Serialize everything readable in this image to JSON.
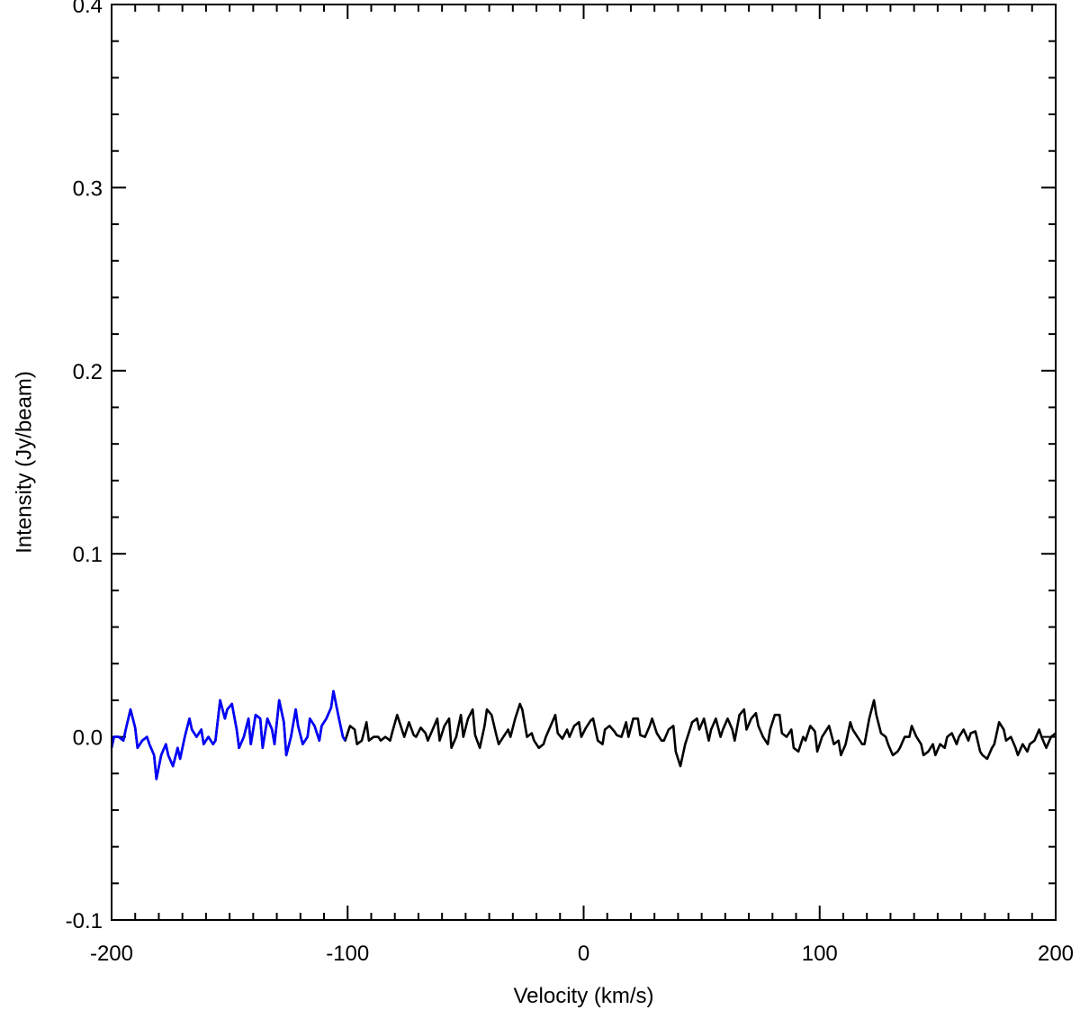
{
  "chart_data": {
    "type": "line",
    "title": "",
    "xlabel": "Velocity (km/s)",
    "ylabel": "Intensity (Jy/beam)",
    "xlim": [
      -200,
      200
    ],
    "ylim": [
      -0.1,
      0.4
    ],
    "x_ticks": [
      -200,
      -100,
      0,
      100,
      200
    ],
    "x_tick_labels": [
      "-200",
      "-100",
      "0",
      "100",
      "200"
    ],
    "y_ticks": [
      -0.1,
      0.0,
      0.1,
      0.2,
      0.3,
      0.4
    ],
    "y_tick_labels": [
      "-0.1",
      "0.0",
      "0.1",
      "0.2",
      "0.3",
      "0.4"
    ],
    "x_minor_step": 10,
    "y_minor_step": 0.02,
    "grid": false,
    "series": [
      {
        "color": "#000000",
        "style": "solid",
        "points": [
          [
            -200,
            -0.006
          ],
          [
            -199,
            0.0
          ],
          [
            -197,
            0.0
          ],
          [
            -195,
            -0.002
          ],
          [
            -194,
            0.004
          ],
          [
            -192,
            0.015
          ],
          [
            -190,
            0.005
          ],
          [
            -189,
            -0.006
          ],
          [
            -187,
            -0.002
          ],
          [
            -185,
            0.0
          ],
          [
            -184,
            -0.004
          ],
          [
            -182,
            -0.01
          ],
          [
            -181,
            -0.023
          ],
          [
            -179,
            -0.01
          ],
          [
            -177,
            -0.004
          ],
          [
            -176,
            -0.01
          ],
          [
            -174,
            -0.016
          ],
          [
            -172,
            -0.006
          ],
          [
            -171,
            -0.012
          ],
          [
            -169,
            0.0
          ],
          [
            -167,
            0.01
          ],
          [
            -166,
            0.004
          ],
          [
            -164,
            0.0
          ],
          [
            -162,
            0.004
          ],
          [
            -161,
            -0.004
          ],
          [
            -159,
            0.0
          ],
          [
            -157,
            -0.004
          ],
          [
            -156,
            -0.002
          ],
          [
            -154,
            0.02
          ],
          [
            -152,
            0.01
          ],
          [
            -151,
            0.015
          ],
          [
            -149,
            0.018
          ],
          [
            -147,
            0.004
          ],
          [
            -146,
            -0.006
          ],
          [
            -144,
            0.0
          ],
          [
            -142,
            0.01
          ],
          [
            -141,
            -0.004
          ],
          [
            -139,
            0.012
          ],
          [
            -137,
            0.01
          ],
          [
            -136,
            -0.006
          ],
          [
            -134,
            0.01
          ],
          [
            -132,
            0.004
          ],
          [
            -131,
            -0.004
          ],
          [
            -129,
            0.02
          ],
          [
            -127,
            0.008
          ],
          [
            -126,
            -0.01
          ],
          [
            -124,
            0.0
          ],
          [
            -122,
            0.015
          ],
          [
            -121,
            0.006
          ],
          [
            -119,
            -0.004
          ],
          [
            -117,
            0.0
          ],
          [
            -116,
            0.01
          ],
          [
            -114,
            0.006
          ],
          [
            -112,
            -0.002
          ],
          [
            -111,
            0.006
          ],
          [
            -109,
            0.01
          ],
          [
            -107,
            0.016
          ],
          [
            -106,
            0.025
          ],
          [
            -104,
            0.012
          ],
          [
            -102,
            0.0
          ],
          [
            -101,
            -0.002
          ],
          [
            -99,
            0.006
          ],
          [
            -97,
            0.004
          ],
          [
            -96,
            -0.004
          ],
          [
            -94,
            -0.002
          ],
          [
            -92,
            0.008
          ],
          [
            -91,
            -0.002
          ],
          [
            -89,
            0.0
          ],
          [
            -87,
            0.0
          ],
          [
            -86,
            -0.002
          ],
          [
            -84,
            0.0
          ],
          [
            -82,
            -0.002
          ],
          [
            -81,
            0.003
          ],
          [
            -79,
            0.012
          ],
          [
            -77,
            0.004
          ],
          [
            -76,
            0.0
          ],
          [
            -74,
            0.008
          ],
          [
            -72,
            0.001
          ],
          [
            -71,
            0.0
          ],
          [
            -69,
            0.005
          ],
          [
            -67,
            0.002
          ],
          [
            -66,
            -0.002
          ],
          [
            -64,
            0.004
          ],
          [
            -62,
            0.01
          ],
          [
            -61,
            -0.002
          ],
          [
            -59,
            0.006
          ],
          [
            -57,
            0.01
          ],
          [
            -56,
            -0.006
          ],
          [
            -54,
            0.0
          ],
          [
            -52,
            0.012
          ],
          [
            -51,
            0.0
          ],
          [
            -49,
            0.01
          ],
          [
            -47,
            0.015
          ],
          [
            -46,
            0.001
          ],
          [
            -44,
            -0.006
          ],
          [
            -42,
            0.006
          ],
          [
            -41,
            0.015
          ],
          [
            -39,
            0.012
          ],
          [
            -37,
            0.001
          ],
          [
            -36,
            -0.004
          ],
          [
            -34,
            0.0
          ],
          [
            -32,
            0.004
          ],
          [
            -31,
            0.0
          ],
          [
            -29,
            0.01
          ],
          [
            -27,
            0.018
          ],
          [
            -26,
            0.015
          ],
          [
            -24,
            0.0
          ],
          [
            -22,
            0.002
          ],
          [
            -21,
            -0.002
          ],
          [
            -19,
            -0.006
          ],
          [
            -17,
            -0.004
          ],
          [
            -16,
            0.0
          ],
          [
            -14,
            0.006
          ],
          [
            -12,
            0.012
          ],
          [
            -11,
            0.002
          ],
          [
            -9,
            -0.001
          ],
          [
            -7,
            0.004
          ],
          [
            -6,
            0.0
          ],
          [
            -4,
            0.006
          ],
          [
            -2,
            0.008
          ],
          [
            -1,
            0.0
          ],
          [
            1,
            0.005
          ],
          [
            3,
            0.009
          ],
          [
            4,
            0.01
          ],
          [
            6,
            -0.002
          ],
          [
            8,
            -0.004
          ],
          [
            9,
            0.004
          ],
          [
            11,
            0.006
          ],
          [
            13,
            0.003
          ],
          [
            14,
            0.001
          ],
          [
            16,
            0.0
          ],
          [
            18,
            0.008
          ],
          [
            19,
            0.0
          ],
          [
            21,
            0.01
          ],
          [
            23,
            0.01
          ],
          [
            24,
            0.001
          ],
          [
            26,
            0.0
          ],
          [
            28,
            0.006
          ],
          [
            29,
            0.01
          ],
          [
            31,
            0.002
          ],
          [
            33,
            -0.002
          ],
          [
            34,
            -0.002
          ],
          [
            36,
            0.004
          ],
          [
            38,
            0.006
          ],
          [
            39,
            -0.008
          ],
          [
            41,
            -0.016
          ],
          [
            43,
            -0.004
          ],
          [
            44,
            0.0
          ],
          [
            46,
            0.008
          ],
          [
            48,
            0.01
          ],
          [
            49,
            0.004
          ],
          [
            51,
            0.01
          ],
          [
            53,
            -0.002
          ],
          [
            54,
            0.004
          ],
          [
            56,
            0.01
          ],
          [
            58,
            0.0
          ],
          [
            59,
            0.004
          ],
          [
            61,
            0.01
          ],
          [
            63,
            0.004
          ],
          [
            64,
            -0.002
          ],
          [
            66,
            0.012
          ],
          [
            68,
            0.015
          ],
          [
            69,
            0.004
          ],
          [
            71,
            0.01
          ],
          [
            73,
            0.013
          ],
          [
            74,
            0.006
          ],
          [
            76,
            0.0
          ],
          [
            78,
            -0.004
          ],
          [
            79,
            0.004
          ],
          [
            81,
            0.012
          ],
          [
            83,
            0.012
          ],
          [
            84,
            0.002
          ],
          [
            86,
            0.0
          ],
          [
            88,
            0.004
          ],
          [
            89,
            -0.006
          ],
          [
            91,
            -0.008
          ],
          [
            93,
            0.0
          ],
          [
            94,
            -0.002
          ],
          [
            96,
            0.006
          ],
          [
            98,
            0.003
          ],
          [
            99,
            -0.008
          ],
          [
            101,
            0.0
          ],
          [
            103,
            0.004
          ],
          [
            104,
            0.006
          ],
          [
            106,
            -0.004
          ],
          [
            108,
            -0.002
          ],
          [
            109,
            -0.01
          ],
          [
            111,
            -0.004
          ],
          [
            113,
            0.008
          ],
          [
            114,
            0.004
          ],
          [
            116,
            0.0
          ],
          [
            118,
            -0.004
          ],
          [
            119,
            -0.004
          ],
          [
            121,
            0.01
          ],
          [
            123,
            0.02
          ],
          [
            124,
            0.012
          ],
          [
            126,
            0.002
          ],
          [
            128,
            0.0
          ],
          [
            129,
            -0.004
          ],
          [
            131,
            -0.01
          ],
          [
            133,
            -0.008
          ],
          [
            134,
            -0.006
          ],
          [
            136,
            0.0
          ],
          [
            138,
            0.0
          ],
          [
            139,
            0.006
          ],
          [
            141,
            0.0
          ],
          [
            143,
            -0.004
          ],
          [
            144,
            -0.01
          ],
          [
            146,
            -0.008
          ],
          [
            148,
            -0.004
          ],
          [
            149,
            -0.01
          ],
          [
            151,
            -0.004
          ],
          [
            153,
            -0.006
          ],
          [
            154,
            0.0
          ],
          [
            156,
            0.002
          ],
          [
            158,
            -0.004
          ],
          [
            159,
            0.0
          ],
          [
            161,
            0.004
          ],
          [
            163,
            -0.002
          ],
          [
            164,
            0.002
          ],
          [
            166,
            0.003
          ],
          [
            168,
            -0.008
          ],
          [
            169,
            -0.01
          ],
          [
            171,
            -0.012
          ],
          [
            173,
            -0.006
          ],
          [
            174,
            -0.004
          ],
          [
            176,
            0.008
          ],
          [
            178,
            0.004
          ],
          [
            179,
            -0.002
          ],
          [
            181,
            0.0
          ],
          [
            183,
            -0.006
          ],
          [
            184,
            -0.01
          ],
          [
            186,
            -0.004
          ],
          [
            188,
            -0.008
          ],
          [
            189,
            -0.004
          ],
          [
            191,
            -0.002
          ],
          [
            193,
            0.004
          ],
          [
            194,
            0.0
          ],
          [
            196,
            -0.006
          ],
          [
            198,
            0.0
          ],
          [
            200,
            0.002
          ]
        ]
      },
      {
        "color": "#0000ff",
        "style": "dashed",
        "points": [
          [
            -200,
            -0.006
          ],
          [
            -199,
            0.0
          ],
          [
            -197,
            0.0
          ],
          [
            -195,
            -0.002
          ],
          [
            -194,
            0.004
          ],
          [
            -192,
            0.015
          ],
          [
            -190,
            0.005
          ],
          [
            -189,
            -0.006
          ],
          [
            -187,
            -0.002
          ],
          [
            -185,
            0.0
          ],
          [
            -184,
            -0.004
          ],
          [
            -182,
            -0.01
          ],
          [
            -181,
            -0.023
          ],
          [
            -179,
            -0.01
          ],
          [
            -177,
            -0.004
          ],
          [
            -176,
            -0.01
          ],
          [
            -174,
            -0.016
          ],
          [
            -172,
            -0.006
          ],
          [
            -171,
            -0.012
          ],
          [
            -169,
            0.0
          ],
          [
            -167,
            0.01
          ],
          [
            -166,
            0.004
          ],
          [
            -164,
            0.0
          ],
          [
            -162,
            0.004
          ],
          [
            -161,
            -0.004
          ],
          [
            -159,
            0.0
          ],
          [
            -157,
            -0.004
          ],
          [
            -156,
            -0.002
          ],
          [
            -154,
            0.02
          ],
          [
            -152,
            0.01
          ],
          [
            -151,
            0.015
          ],
          [
            -149,
            0.018
          ],
          [
            -147,
            0.004
          ],
          [
            -146,
            -0.006
          ],
          [
            -144,
            0.0
          ],
          [
            -142,
            0.01
          ],
          [
            -141,
            -0.004
          ],
          [
            -139,
            0.012
          ],
          [
            -137,
            0.01
          ],
          [
            -136,
            -0.006
          ],
          [
            -134,
            0.01
          ],
          [
            -132,
            0.004
          ],
          [
            -131,
            -0.004
          ],
          [
            -129,
            0.02
          ],
          [
            -127,
            0.008
          ],
          [
            -126,
            -0.01
          ],
          [
            -124,
            0.0
          ],
          [
            -122,
            0.015
          ],
          [
            -121,
            0.006
          ],
          [
            -119,
            -0.004
          ],
          [
            -117,
            0.0
          ],
          [
            -116,
            0.01
          ],
          [
            -114,
            0.006
          ],
          [
            -112,
            -0.002
          ],
          [
            -111,
            0.006
          ],
          [
            -109,
            0.01
          ],
          [
            -107,
            0.016
          ],
          [
            -106,
            0.025
          ],
          [
            -104,
            0.012
          ],
          [
            -102,
            0.0
          ],
          [
            -101,
            -0.002
          ]
        ]
      },
      {
        "color": "#00ff00",
        "style": "dashed",
        "points": []
      },
      {
        "color": "#ff0000",
        "style": "dashed",
        "points": []
      }
    ]
  }
}
